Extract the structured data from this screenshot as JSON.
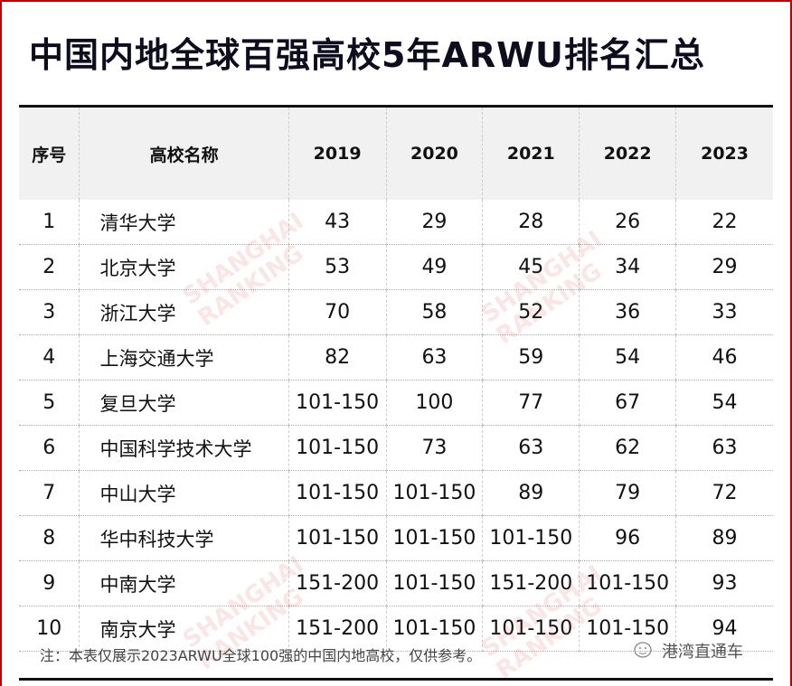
{
  "title": "中国内地全球百强高校5年ARWU排名汇总",
  "table": {
    "headers": [
      "序号",
      "高校名称",
      "2019",
      "2020",
      "2021",
      "2022",
      "2023"
    ],
    "rows": [
      [
        "1",
        "清华大学",
        "43",
        "29",
        "28",
        "26",
        "22"
      ],
      [
        "2",
        "北京大学",
        "53",
        "49",
        "45",
        "34",
        "29"
      ],
      [
        "3",
        "浙江大学",
        "70",
        "58",
        "52",
        "36",
        "33"
      ],
      [
        "4",
        "上海交通大学",
        "82",
        "63",
        "59",
        "54",
        "46"
      ],
      [
        "5",
        "复旦大学",
        "101-150",
        "100",
        "77",
        "67",
        "54"
      ],
      [
        "6",
        "中国科学技术大学",
        "101-150",
        "73",
        "63",
        "62",
        "63"
      ],
      [
        "7",
        "中山大学",
        "101-150",
        "101-150",
        "89",
        "79",
        "72"
      ],
      [
        "8",
        "华中科技大学",
        "101-150",
        "101-150",
        "101-150",
        "96",
        "89"
      ],
      [
        "9",
        "中南大学",
        "151-200",
        "101-150",
        "151-200",
        "101-150",
        "93"
      ],
      [
        "10",
        "南京大学",
        "151-200",
        "101-150",
        "101-150",
        "101-150",
        "94"
      ]
    ]
  },
  "note": "注：本表仅展示2023ARWU全球100强的中国内地高校，仅供参考。",
  "brand": {
    "name": "港湾直通车",
    "icon": "wechat-icon"
  },
  "watermark": "SHANGHAI RANKING",
  "colors": {
    "border": "#c00000",
    "header_bg": "#f1f1f1",
    "title": "#0d0d1e"
  }
}
